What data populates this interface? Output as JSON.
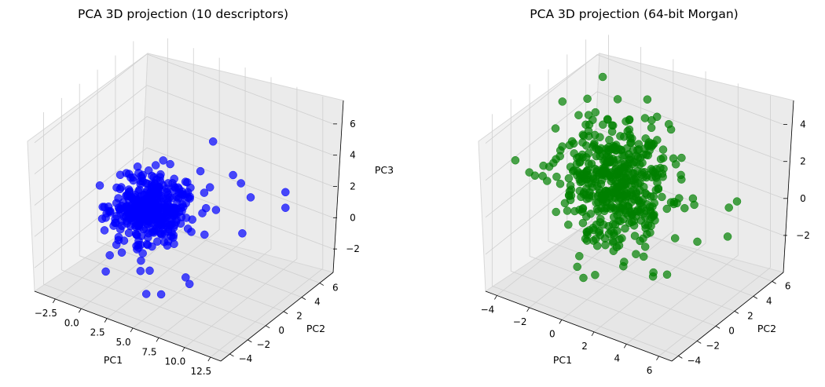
{
  "figure": {
    "background": "#ffffff"
  },
  "chart_data": [
    {
      "type": "scatter",
      "projection": "3d",
      "title": "PCA 3D projection (10 descriptors)",
      "xlabel": "PC1",
      "ylabel": "PC2",
      "zlabel": "PC3",
      "xlim": [
        -4.5,
        13.5
      ],
      "ylim": [
        -5,
        7.5
      ],
      "zlim": [
        -3.5,
        7.5
      ],
      "xticks": [
        -2.5,
        0.0,
        2.5,
        5.0,
        7.5,
        10.0,
        12.5
      ],
      "xtick_labels": [
        "−2.5",
        "0.0",
        "2.5",
        "5.0",
        "7.5",
        "10.0",
        "12.5"
      ],
      "yticks": [
        -4,
        -2,
        0,
        2,
        4,
        6
      ],
      "ytick_labels": [
        "−4",
        "−2",
        "0",
        "2",
        "4",
        "6"
      ],
      "zticks": [
        -2,
        0,
        2,
        4,
        6
      ],
      "ztick_labels": [
        "−2",
        "0",
        "2",
        "4",
        "6"
      ],
      "grid": true,
      "marker_color": "#0000ff",
      "marker_alpha": 0.7,
      "n_points": 400,
      "cluster": {
        "pc1_center": 1.5,
        "pc1_spread": 1.6,
        "pc2_center": 1.0,
        "pc2_spread": 1.3,
        "pc3_center": 0.5,
        "pc3_spread": 0.9
      },
      "outliers": [
        {
          "pc1": 11.5,
          "pc2": 4.5,
          "pc3": 2.5
        },
        {
          "pc1": 11.5,
          "pc2": 4.5,
          "pc3": 1.5
        },
        {
          "pc1": 9.5,
          "pc2": 2.0,
          "pc3": 0.5
        },
        {
          "pc1": 8.5,
          "pc2": 3.0,
          "pc3": 3.0
        },
        {
          "pc1": 9.0,
          "pc2": 3.5,
          "pc3": 2.0
        },
        {
          "pc1": 7.0,
          "pc2": -1.0,
          "pc3": -2.0
        },
        {
          "pc1": 7.5,
          "pc2": -2.0,
          "pc3": -1.0
        },
        {
          "pc1": 6.0,
          "pc2": -3.0,
          "pc3": -2.0
        },
        {
          "pc1": 5.0,
          "pc2": -3.5,
          "pc3": -2.0
        },
        {
          "pc1": 4.0,
          "pc2": -3.0,
          "pc3": -1.0
        },
        {
          "pc1": 6.5,
          "pc2": 1.0,
          "pc3": 1.5
        },
        {
          "pc1": 5.5,
          "pc2": 3.0,
          "pc3": 2.0
        },
        {
          "pc1": 6.0,
          "pc2": 5.0,
          "pc3": 2.0
        },
        {
          "pc1": 4.5,
          "pc2": 4.5,
          "pc3": 4.0
        }
      ]
    },
    {
      "type": "scatter",
      "projection": "3d",
      "title": "PCA 3D projection (64-bit Morgan)",
      "xlabel": "PC1",
      "ylabel": "PC2",
      "zlabel": "",
      "xlim": [
        -4.7,
        6.8
      ],
      "ylim": [
        -4.7,
        7.2
      ],
      "zlim": [
        -4,
        5.3
      ],
      "xticks": [
        -4,
        -2,
        0,
        2,
        4,
        6
      ],
      "xtick_labels": [
        "−4",
        "−2",
        "0",
        "2",
        "4",
        "6"
      ],
      "yticks": [
        -4,
        -2,
        0,
        2,
        4,
        6
      ],
      "ytick_labels": [
        "−4",
        "−2",
        "0",
        "2",
        "4",
        "6"
      ],
      "zticks": [
        -2,
        0,
        2,
        4
      ],
      "ztick_labels": [
        "−2",
        "0",
        "2",
        "4"
      ],
      "grid": true,
      "marker_color": "#008000",
      "marker_alpha": 0.7,
      "n_points": 500,
      "cluster": {
        "pc1_center": -0.5,
        "pc1_spread": 1.5,
        "pc2_center": 2.0,
        "pc2_spread": 1.8,
        "pc3_center": 0.5,
        "pc3_spread": 1.4
      },
      "outliers": [
        {
          "pc1": 5.5,
          "pc2": 4.5,
          "pc3": 0.5
        },
        {
          "pc1": 5.0,
          "pc2": 4.5,
          "pc3": 0.0
        },
        {
          "pc1": 5.5,
          "pc2": 3.5,
          "pc3": -1.0
        },
        {
          "pc1": 4.5,
          "pc2": 2.0,
          "pc3": -1.0
        },
        {
          "pc1": 3.5,
          "pc2": 0.5,
          "pc3": -2.5
        },
        {
          "pc1": 2.0,
          "pc2": -1.5,
          "pc3": -1.5
        },
        {
          "pc1": 0.5,
          "pc2": -2.0,
          "pc3": -2.5
        },
        {
          "pc1": -1.0,
          "pc2": 3.0,
          "pc3": 4.5
        },
        {
          "pc1": 1.0,
          "pc2": 5.0,
          "pc3": 3.0
        },
        {
          "pc1": 3.5,
          "pc2": -1.0,
          "pc3": -2.0
        }
      ]
    }
  ]
}
